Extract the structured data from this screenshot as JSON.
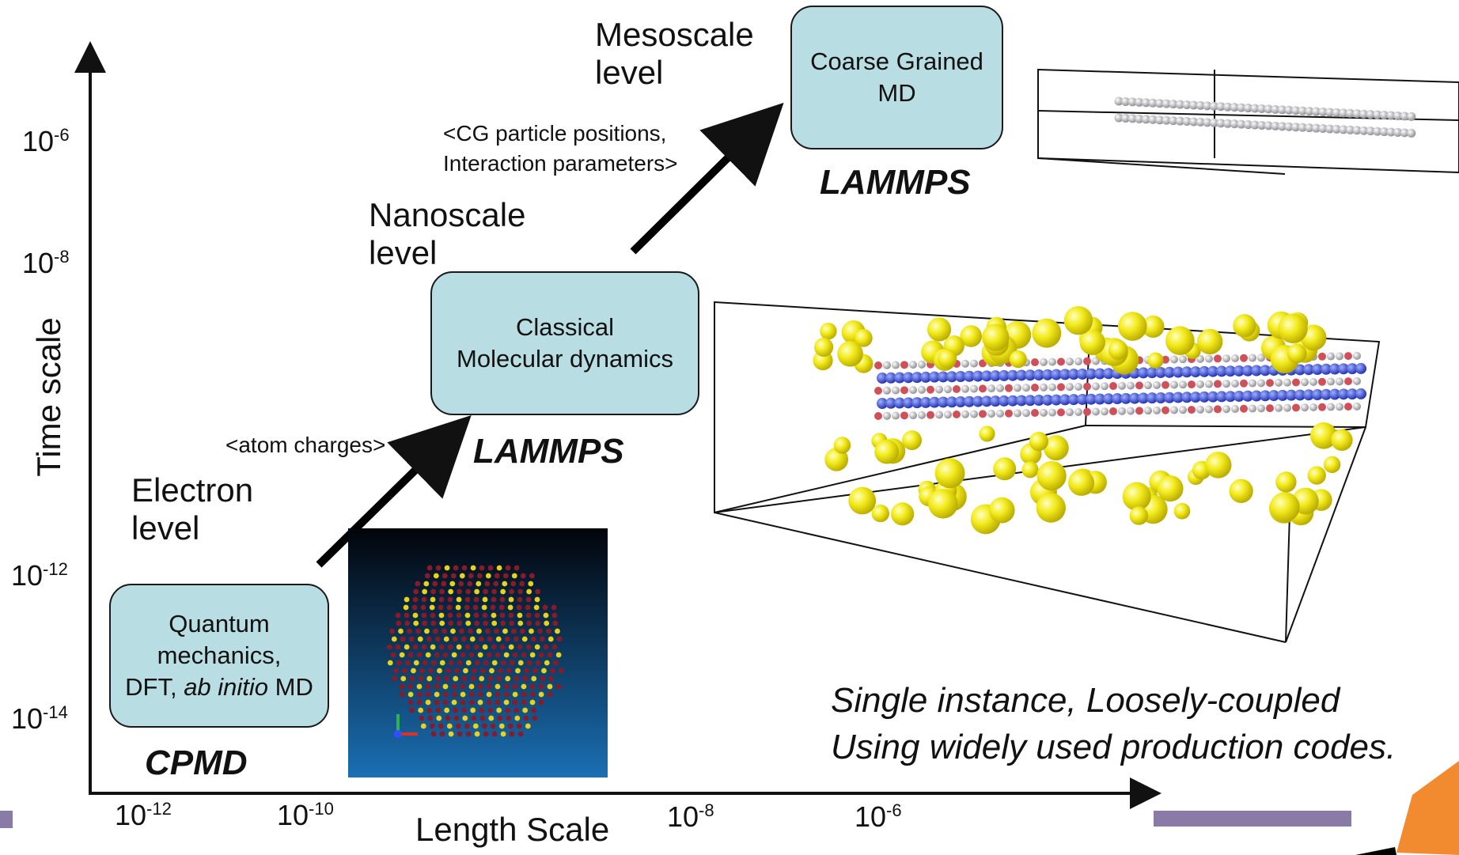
{
  "axes": {
    "x_title": "Length Scale",
    "y_title": "Time scale",
    "x_ticks": [
      {
        "base": "10",
        "exp": "-12"
      },
      {
        "base": "10",
        "exp": "-10"
      },
      {
        "base": "10",
        "exp": "-8"
      },
      {
        "base": "10",
        "exp": "-6"
      }
    ],
    "y_ticks": [
      {
        "base": "10",
        "exp": "-6"
      },
      {
        "base": "10",
        "exp": "-8"
      },
      {
        "base": "10",
        "exp": "-12"
      },
      {
        "base": "10",
        "exp": "-14"
      }
    ]
  },
  "levels": {
    "electron": {
      "line1": "Electron",
      "line2": "level"
    },
    "nanoscale": {
      "line1": "Nanoscale",
      "line2": "level"
    },
    "mesoscale": {
      "line1": "Mesoscale",
      "line2": "level"
    }
  },
  "boxes": {
    "quantum": {
      "line1": "Quantum",
      "line2": "mechanics,",
      "line3_prefix": "DFT, ",
      "line3_italic": "ab initio",
      "line3_suffix": " MD"
    },
    "classical": {
      "line1": "Classical",
      "line2": "Molecular dynamics"
    },
    "coarse": {
      "line1": "Coarse Grained",
      "line2": "MD"
    }
  },
  "codes": {
    "cpmd": "CPMD",
    "lammps_nano": "LAMMPS",
    "lammps_meso": "LAMMPS"
  },
  "annotations": {
    "atom_charges": "<atom charges>",
    "cg_line1": "<CG particle positions,",
    "cg_line2": "Interaction parameters>"
  },
  "note": {
    "line1": "Single instance, Loosely-coupled",
    "line2": "Using widely used production codes."
  },
  "colors": {
    "box_fill": "#b8dde2",
    "footer_bar": "#8a7aa8",
    "corner_accent": "#f28a30",
    "atom_yellow": "#f2ea1a",
    "atom_blue": "#2a3fd8"
  }
}
